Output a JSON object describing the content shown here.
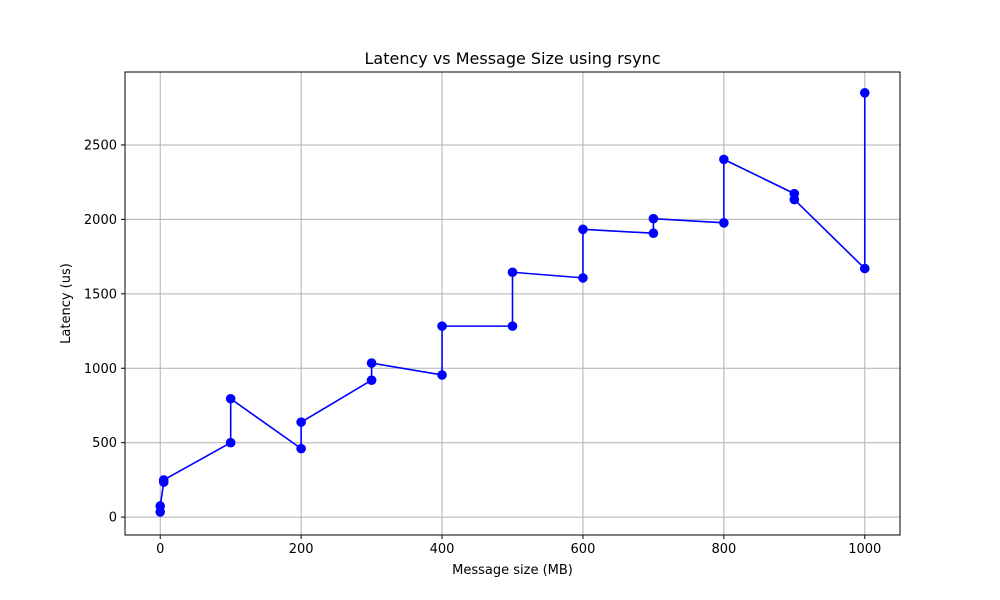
{
  "chart_data": {
    "type": "line",
    "title": "Latency vs Message Size using rsync",
    "xlabel": "Message size (MB)",
    "ylabel": "Latency (us)",
    "xlim": [
      -50,
      1050
    ],
    "ylim": [
      -120,
      2990
    ],
    "xticks": [
      0,
      200,
      400,
      600,
      800,
      1000
    ],
    "yticks": [
      0,
      500,
      1000,
      1500,
      2000,
      2500
    ],
    "grid": true,
    "series": [
      {
        "color": "#0000ff",
        "marker": "circle",
        "points": [
          {
            "x": 0,
            "y": 35
          },
          {
            "x": 0,
            "y": 75
          },
          {
            "x": 5,
            "y": 235
          },
          {
            "x": 5,
            "y": 250
          },
          {
            "x": 100,
            "y": 500
          },
          {
            "x": 100,
            "y": 795
          },
          {
            "x": 200,
            "y": 460
          },
          {
            "x": 200,
            "y": 638
          },
          {
            "x": 300,
            "y": 920
          },
          {
            "x": 300,
            "y": 1035
          },
          {
            "x": 400,
            "y": 955
          },
          {
            "x": 400,
            "y": 1283
          },
          {
            "x": 500,
            "y": 1283
          },
          {
            "x": 500,
            "y": 1645
          },
          {
            "x": 600,
            "y": 1607
          },
          {
            "x": 600,
            "y": 1933
          },
          {
            "x": 700,
            "y": 1907
          },
          {
            "x": 700,
            "y": 2005
          },
          {
            "x": 800,
            "y": 1977
          },
          {
            "x": 800,
            "y": 2403
          },
          {
            "x": 900,
            "y": 2173
          },
          {
            "x": 900,
            "y": 2133
          },
          {
            "x": 1000,
            "y": 1670
          },
          {
            "x": 1000,
            "y": 2850
          }
        ]
      }
    ]
  }
}
